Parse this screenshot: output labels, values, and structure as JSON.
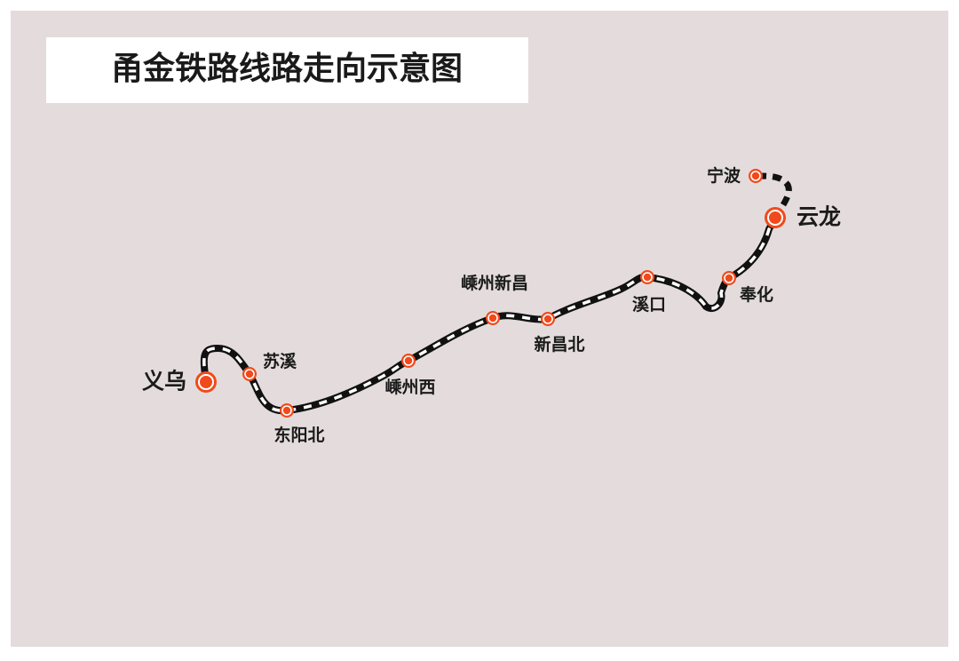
{
  "title": "甬金铁路线路走向示意图",
  "stations": [
    "义乌",
    "苏溪",
    "东阳北",
    "嵊州西",
    "嵊州新昌",
    "新昌北",
    "溪口",
    "奉化",
    "云龙",
    "宁波"
  ]
}
